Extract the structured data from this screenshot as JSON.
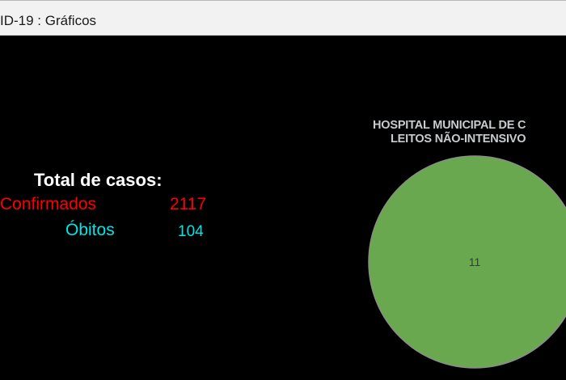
{
  "window": {
    "title": "ID-19 : Gráficos"
  },
  "totals": {
    "heading": "Total de casos:",
    "confirmed_label": "Confirmados",
    "confirmed_value": "2117",
    "deaths_label": "Óbitos",
    "deaths_value": "104",
    "confirmed_color": "#ff0000",
    "deaths_color": "#00e5e5"
  },
  "chart_data": {
    "type": "pie",
    "title_lines": [
      "HOSPITAL MUNICIPAL DE C",
      "LEITOS NÃO-INTENSIVO"
    ],
    "slices": [
      {
        "value": 11,
        "label": "11",
        "color": "#6aa84f"
      }
    ]
  }
}
